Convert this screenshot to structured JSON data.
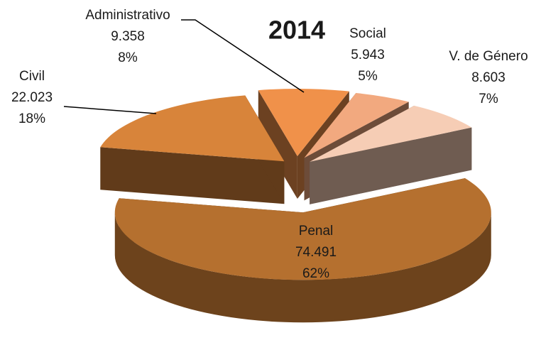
{
  "chart_data": {
    "type": "pie3d",
    "title": "2014",
    "categories": [
      "Administrativo",
      "Social",
      "V. de Género",
      "Penal",
      "Civil"
    ],
    "values": [
      9358,
      5943,
      8603,
      74491,
      22023
    ],
    "value_labels": [
      "9.358",
      "5.943",
      "8.603",
      "74.491",
      "22.023"
    ],
    "percentages": [
      8,
      5,
      7,
      62,
      18
    ],
    "percentage_labels": [
      "8%",
      "5%",
      "7%",
      "62%",
      "18%"
    ],
    "colors": [
      "#f0914a",
      "#f2a97f",
      "#f6cdb5",
      "#b5702f",
      "#d8843a"
    ]
  }
}
